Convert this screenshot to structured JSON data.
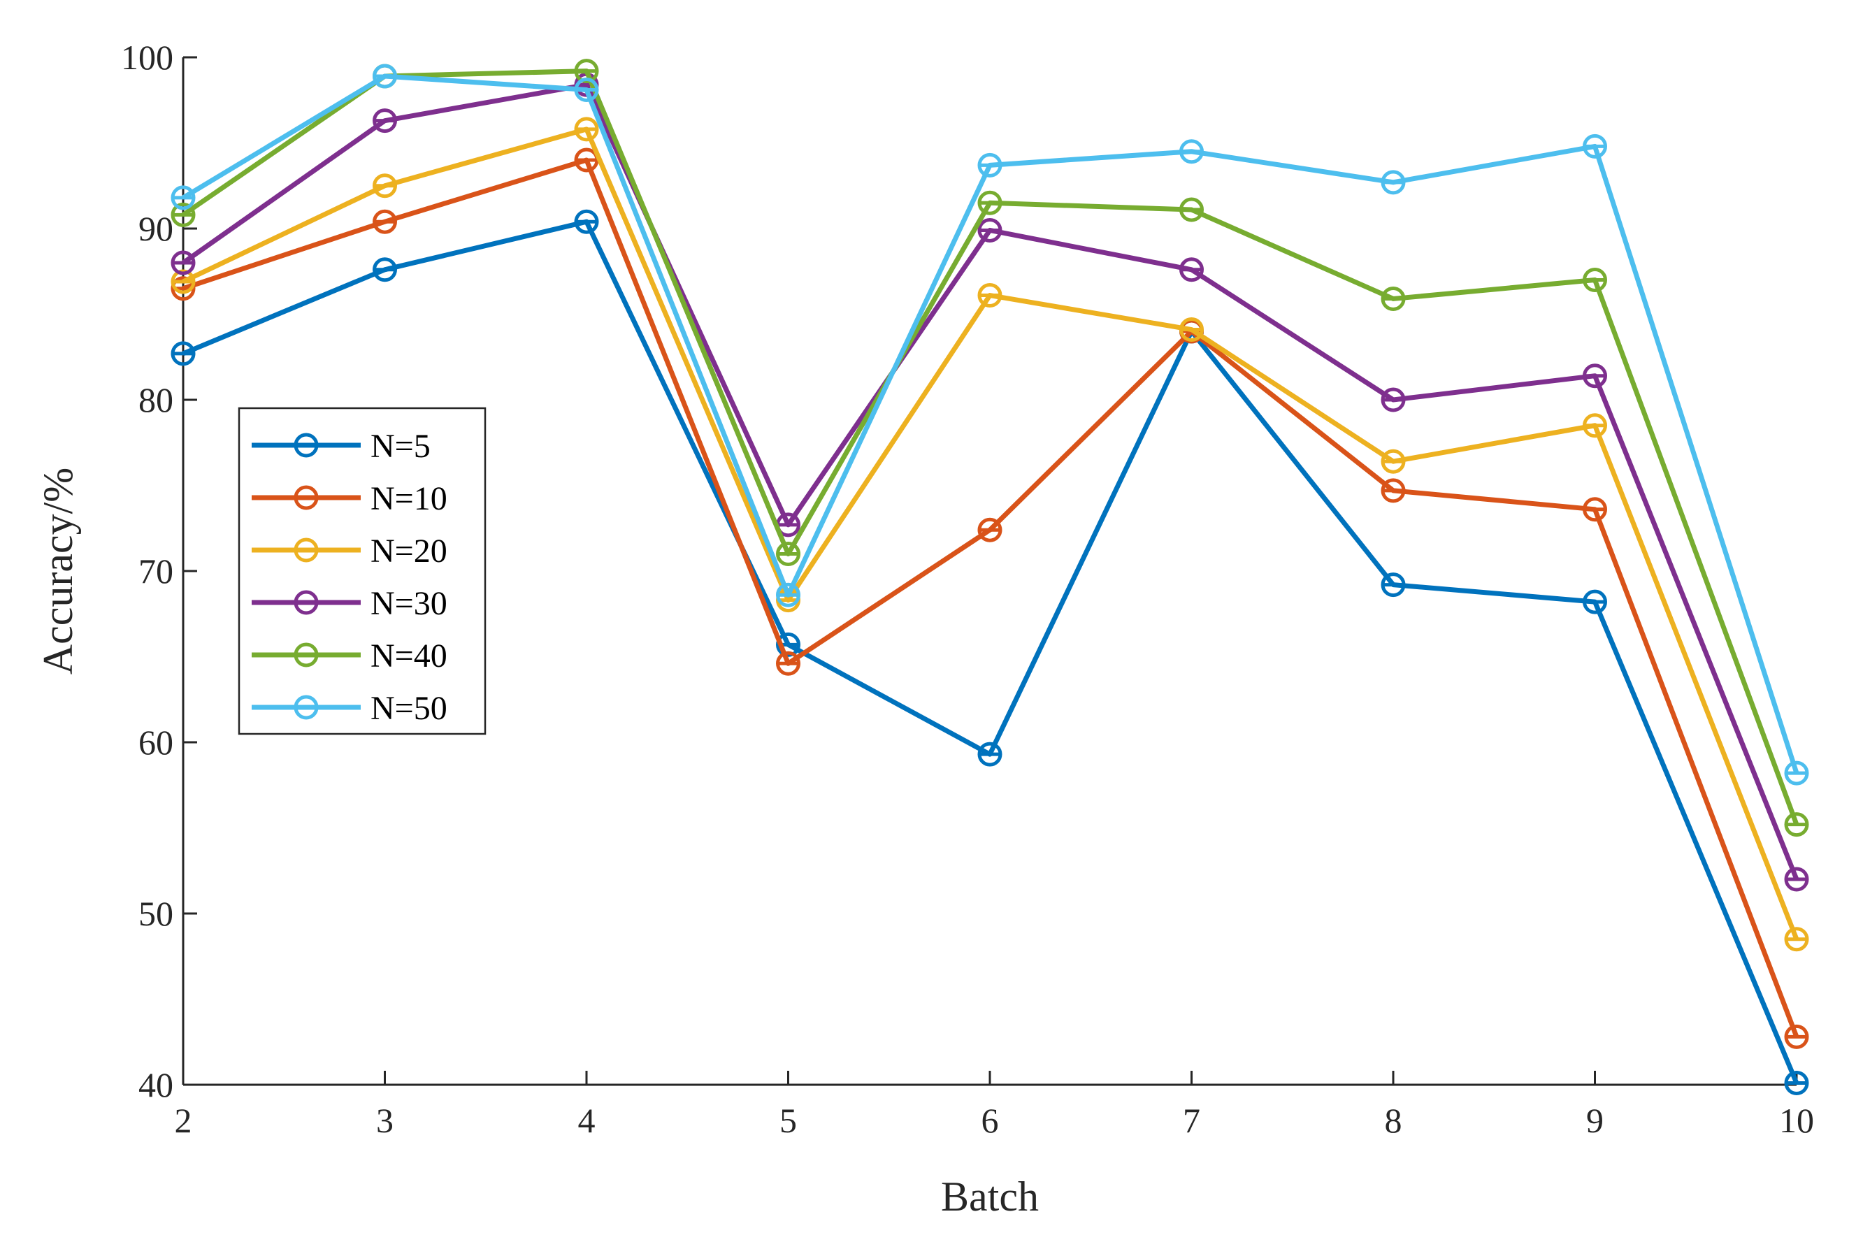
{
  "chart_data": {
    "type": "line",
    "title": "",
    "xlabel": "Batch",
    "ylabel": "Accuracy/%",
    "x": [
      2,
      3,
      4,
      5,
      6,
      7,
      8,
      9,
      10
    ],
    "xticks": [
      "2",
      "3",
      "4",
      "5",
      "6",
      "7",
      "8",
      "9",
      "10"
    ],
    "yticks": [
      "40",
      "50",
      "60",
      "70",
      "80",
      "90",
      "100"
    ],
    "xlim": [
      2,
      10
    ],
    "ylim": [
      40,
      100
    ],
    "grid": false,
    "legend_position": "middle-left",
    "series": [
      {
        "name": "N=5",
        "color": "#0072BD",
        "values": [
          82.7,
          87.6,
          90.4,
          65.7,
          59.3,
          84.0,
          69.2,
          68.2,
          40.1
        ]
      },
      {
        "name": "N=10",
        "color": "#D95319",
        "values": [
          86.5,
          90.4,
          94.0,
          64.6,
          72.4,
          84.0,
          74.7,
          73.6,
          42.8
        ]
      },
      {
        "name": "N=20",
        "color": "#EDB120",
        "values": [
          86.9,
          92.5,
          95.8,
          68.3,
          86.1,
          84.1,
          76.4,
          78.5,
          48.5
        ]
      },
      {
        "name": "N=30",
        "color": "#7E2F8E",
        "values": [
          88.0,
          96.3,
          98.4,
          72.7,
          89.9,
          87.6,
          80.0,
          81.4,
          52.0
        ]
      },
      {
        "name": "N=40",
        "color": "#77AC30",
        "values": [
          90.8,
          98.9,
          99.2,
          71.0,
          91.5,
          91.1,
          85.9,
          87.0,
          55.2
        ]
      },
      {
        "name": "N=50",
        "color": "#4DBEEE",
        "values": [
          91.8,
          98.9,
          98.1,
          68.6,
          93.7,
          94.5,
          92.7,
          94.8,
          58.2
        ]
      }
    ]
  }
}
